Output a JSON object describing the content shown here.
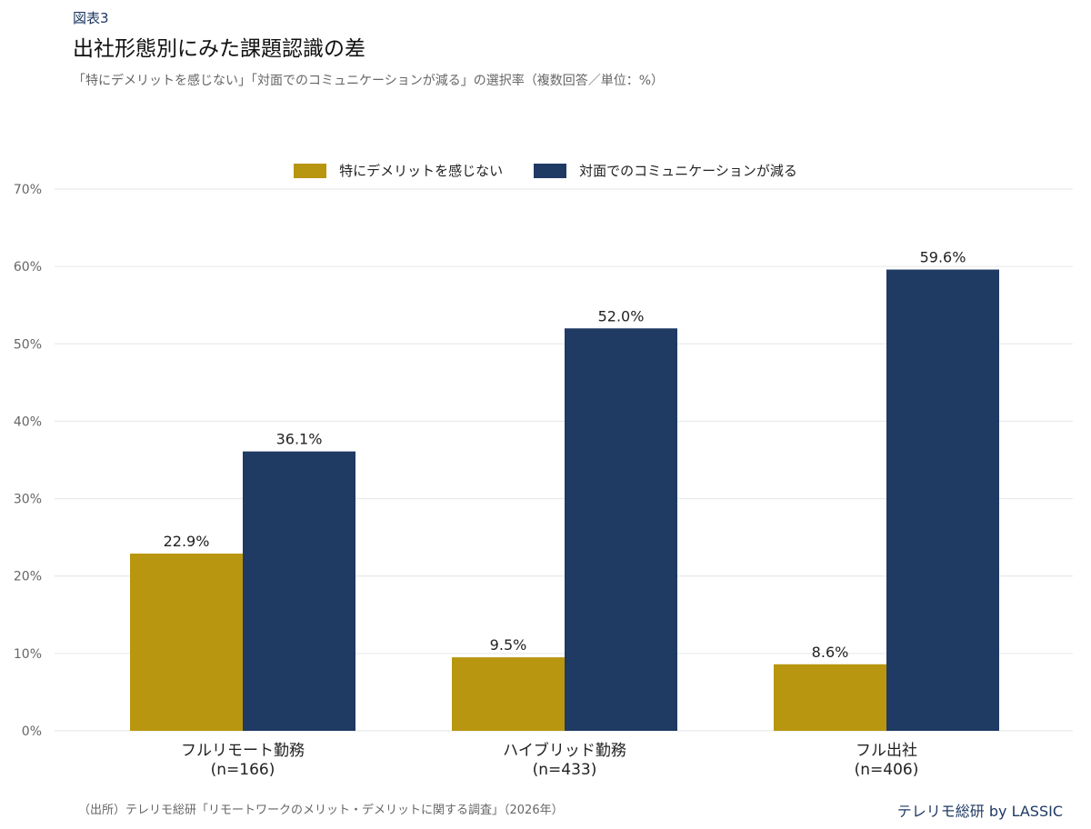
{
  "header": {
    "fig_label": "図表3",
    "title": "出社形態別にみた課題認識の差",
    "subtitle": "「特にデメリットを感じない」「対面でのコミュニケーションが減る」の選択率（複数回答／単位：%）"
  },
  "footer": {
    "source": "（出所）テレリモ総研「リモートワークのメリット・デメリットに関する調査」（2026年）",
    "credit": "テレリモ総研 by LASSIC"
  },
  "chart_data": {
    "type": "bar",
    "categories": [
      {
        "name": "フルリモート勤務",
        "n": "(n=166)"
      },
      {
        "name": "ハイブリッド勤務",
        "n": "(n=433)"
      },
      {
        "name": "フル出社",
        "n": "(n=406)"
      }
    ],
    "series": [
      {
        "name": "特にデメリットを感じない",
        "color": "#b8960f",
        "values": [
          22.9,
          9.5,
          8.6
        ]
      },
      {
        "name": "対面でのコミュニケーションが減る",
        "color": "#1f3a63",
        "values": [
          36.1,
          52.0,
          59.6
        ]
      }
    ],
    "ylim": [
      0,
      70
    ],
    "yticks": [
      0,
      10,
      20,
      30,
      40,
      50,
      60,
      70
    ],
    "value_suffix": "%",
    "grid": true,
    "legend_position": "top-center"
  }
}
